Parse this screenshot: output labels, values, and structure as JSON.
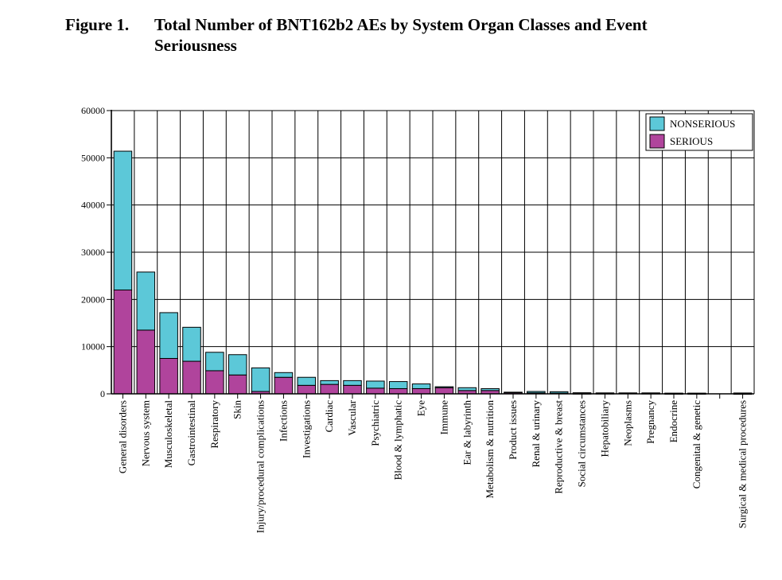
{
  "figure": {
    "label": "Figure 1.",
    "title": "Total Number of BNT162b2 AEs by System Organ Classes and Event Seriousness"
  },
  "chart_data": {
    "type": "bar",
    "stacked": true,
    "title": "Total Number of BNT162b2 AEs by System Organ Classes and Event Seriousness",
    "xlabel": "",
    "ylabel": "",
    "ylim": [
      0,
      60000
    ],
    "yticks": [
      0,
      10000,
      20000,
      30000,
      40000,
      50000,
      60000
    ],
    "grid": true,
    "legend_position": "top-right",
    "categories": [
      "General disorders",
      "Nervous system",
      "Musculoskeletal",
      "Gastrointestinal",
      "Respiratory",
      "Skin",
      "Injury/procedural complications",
      "Infections",
      "Investigations",
      "Cardiac",
      "Vascular",
      "Psychiatric",
      "Blood & lymphatic",
      "Eye",
      "Immune",
      "Ear & labyrinth",
      "Metabolism & nutrition",
      "Product issues",
      "Renal & urinary",
      "Reproductive & breast",
      "Social circumstances",
      "Hepatobiliary",
      "Neoplasms",
      "Pregnancy",
      "Endocrine",
      "Congenital & genetic",
      "",
      "Surgical & medical procedures"
    ],
    "series": [
      {
        "name": "SERIOUS",
        "color": "#b0449c",
        "values": [
          22000,
          13500,
          7500,
          6900,
          4900,
          4000,
          500,
          3500,
          1800,
          2000,
          1800,
          1200,
          1100,
          1100,
          1300,
          700,
          700,
          300,
          200,
          150,
          80,
          100,
          150,
          100,
          50,
          50,
          0,
          30
        ]
      },
      {
        "name": "NONSERIOUS",
        "color": "#5cc8d8",
        "values": [
          29400,
          12300,
          9700,
          7200,
          3900,
          4300,
          5000,
          1000,
          1700,
          800,
          1000,
          1500,
          1500,
          1000,
          200,
          600,
          400,
          50,
          300,
          300,
          150,
          100,
          50,
          100,
          100,
          100,
          0,
          150
        ]
      }
    ]
  }
}
